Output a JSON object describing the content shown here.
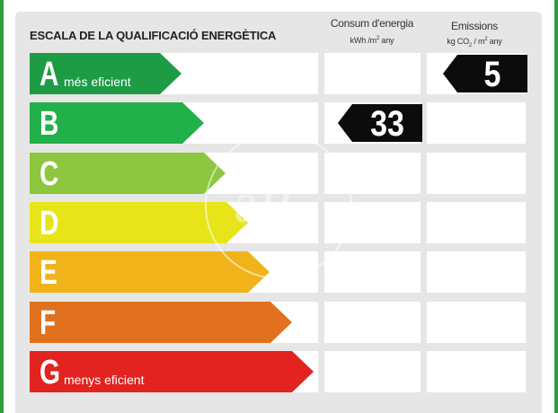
{
  "title": "ESCALA DE LA QUALIFICACIÓ ENERGÈTICA",
  "columns": {
    "consumption": {
      "label": "Consum d'energia",
      "unit_prefix": "kWh /m",
      "unit_sup": "2",
      "unit_suffix": " any"
    },
    "emissions": {
      "label": "Emissions",
      "unit_prefix": "kg CO",
      "unit_sub": "2",
      "unit_mid": " / m",
      "unit_sup": "2",
      "unit_suffix": "  any"
    }
  },
  "grades": [
    {
      "letter": "A",
      "sublabel": "més eficient",
      "color": "#1e9b45"
    },
    {
      "letter": "B",
      "sublabel": "",
      "color": "#22b04b"
    },
    {
      "letter": "C",
      "sublabel": "",
      "color": "#8dc63f"
    },
    {
      "letter": "D",
      "sublabel": "",
      "color": "#e8e41a"
    },
    {
      "letter": "E",
      "sublabel": "",
      "color": "#f0b41a"
    },
    {
      "letter": "F",
      "sublabel": "",
      "color": "#e2711f"
    },
    {
      "letter": "G",
      "sublabel": "menys eficient",
      "color": "#e2231f"
    }
  ],
  "ratings": {
    "consumption": {
      "value": "33",
      "grade": "B"
    },
    "emissions": {
      "value": "5",
      "grade": "A"
    }
  },
  "watermark": "aP"
}
